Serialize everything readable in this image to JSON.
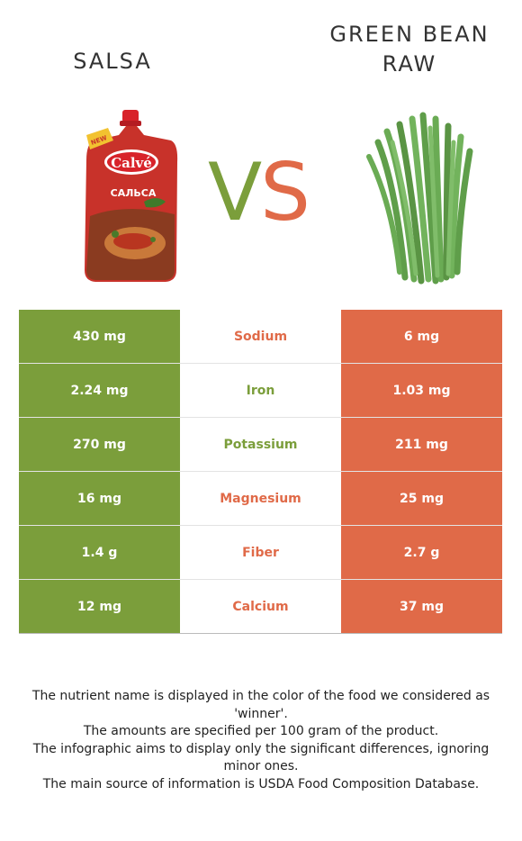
{
  "left_food": {
    "name": "SALSA",
    "color": "#7b9e3b"
  },
  "right_food": {
    "name_line1": "GREEN BEAN",
    "name_line2": "RAW",
    "color": "#e06a48"
  },
  "vs": {
    "v": "V",
    "s": "S"
  },
  "nutrients": [
    {
      "name": "Sodium",
      "left": "430 mg",
      "right": "6 mg",
      "winner": "right"
    },
    {
      "name": "Iron",
      "left": "2.24 mg",
      "right": "1.03 mg",
      "winner": "left"
    },
    {
      "name": "Potassium",
      "left": "270 mg",
      "right": "211 mg",
      "winner": "left"
    },
    {
      "name": "Magnesium",
      "left": "16 mg",
      "right": "25 mg",
      "winner": "right"
    },
    {
      "name": "Fiber",
      "left": "1.4 g",
      "right": "2.7 g",
      "winner": "right"
    },
    {
      "name": "Calcium",
      "left": "12 mg",
      "right": "37 mg",
      "winner": "right"
    }
  ],
  "footer": {
    "line1": "The nutrient name is displayed in the color of the food we considered as 'winner'.",
    "line2": "The amounts are specified per 100 gram of the product.",
    "line3": "The infographic aims to display only the significant differences, ignoring minor ones.",
    "line4": "The main source of information is USDA Food Composition Database."
  },
  "images": {
    "left": "salsa-pouch-icon",
    "right": "green-beans-icon",
    "pouch_brand": "Calvé",
    "pouch_ribbon": "NEW",
    "pouch_product": "САЛЬСА"
  }
}
